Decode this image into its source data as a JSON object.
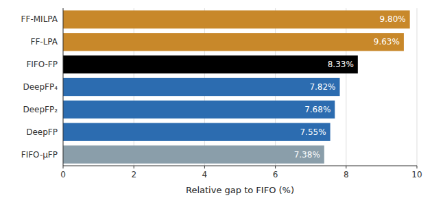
{
  "chart_data": {
    "type": "bar",
    "orientation": "horizontal",
    "categories": [
      "FF-MILPA",
      "FF-LPA",
      "FIFO-FP",
      "DeepFP₄",
      "DeepFP₂",
      "DeepFP",
      "FIFO-μFP"
    ],
    "values": [
      9.8,
      9.63,
      8.33,
      7.82,
      7.68,
      7.55,
      7.38
    ],
    "value_labels": [
      "9.80%",
      "9.63%",
      "8.33%",
      "7.82%",
      "7.68%",
      "7.55%",
      "7.38%"
    ],
    "data_labels": true,
    "colors": [
      "#C8882A",
      "#C8882A",
      "#000000",
      "#2C6CB0",
      "#2C6CB0",
      "#2C6CB0",
      "#8A9EAA"
    ],
    "x_label": "Relative gap to FIFO (%)",
    "xlim": [
      0,
      10
    ],
    "xticks": [
      0,
      2,
      4,
      6,
      8,
      10
    ],
    "grid": true
  }
}
